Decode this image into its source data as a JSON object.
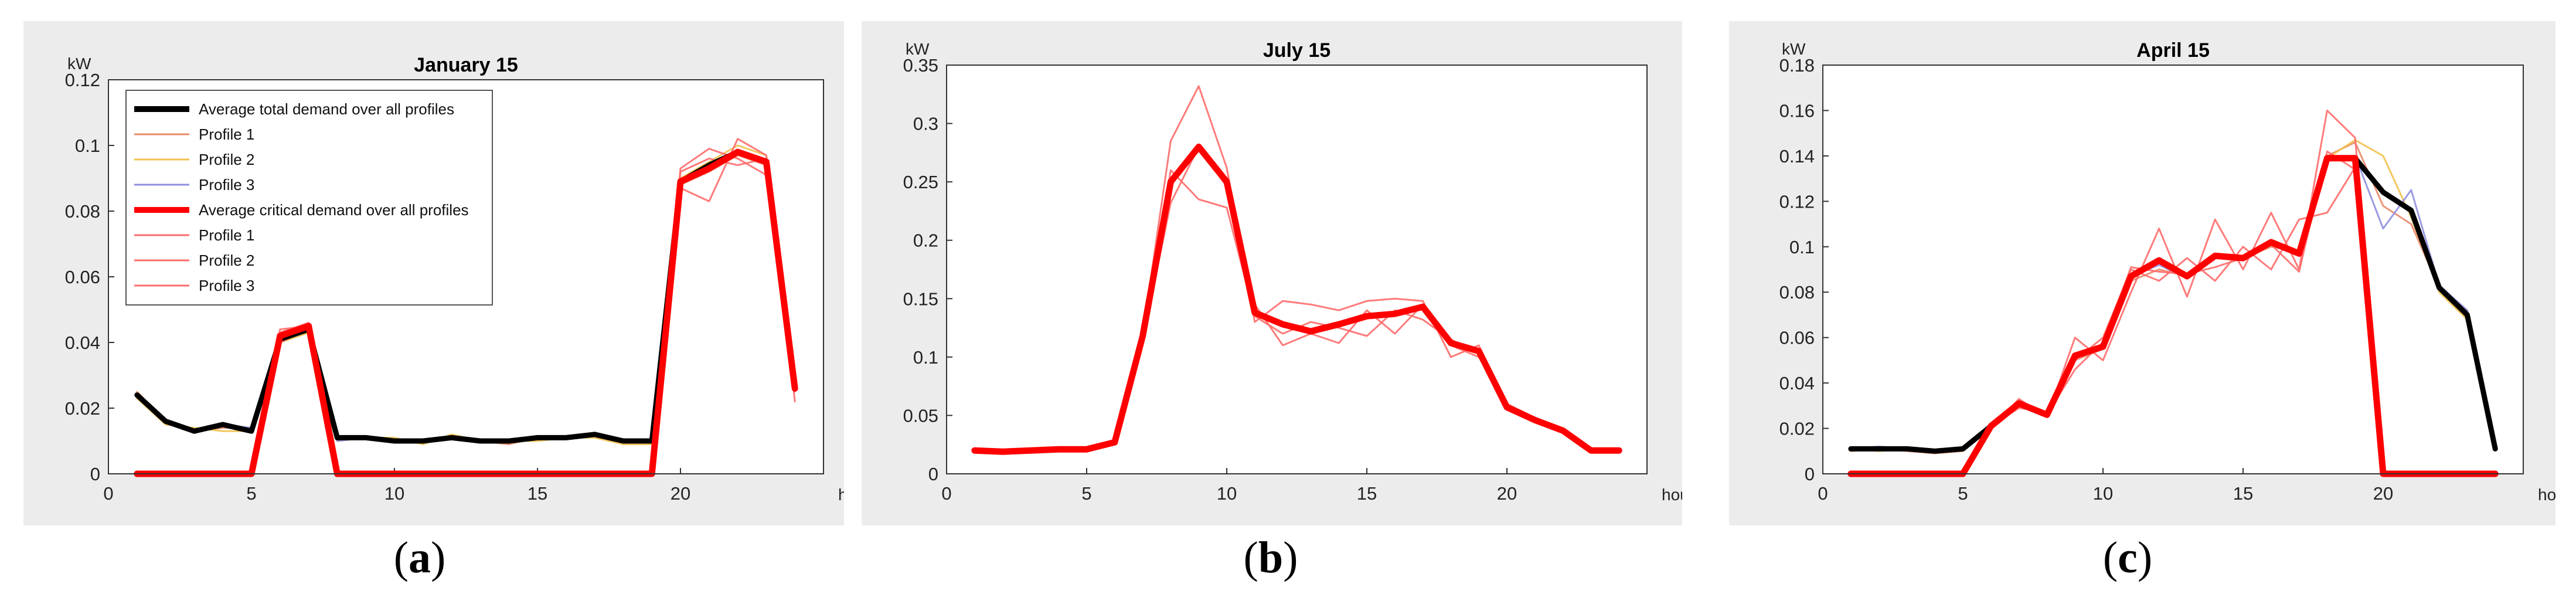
{
  "figure": {
    "sublabels": [
      {
        "open": "(",
        "letter": "a",
        "close": ")"
      },
      {
        "open": "(",
        "letter": "b",
        "close": ")"
      },
      {
        "open": "(",
        "letter": "c",
        "close": ")"
      }
    ]
  },
  "colors": {
    "panel_bg": "#ececec",
    "plot_bg": "#ffffff",
    "avg_total": "#000000",
    "avg_critical": "#ff0000",
    "profile1_total": "#e98a6a",
    "profile2_total": "#f2c14e",
    "profile3_total": "#8f8fe0",
    "profile_critical": "#ff6b6b"
  },
  "chart_data": [
    {
      "type": "line",
      "title": "January 15",
      "xlabel": "hours",
      "ylabel": "kW",
      "xlim": [
        0,
        25
      ],
      "ylim": [
        0,
        0.12
      ],
      "xticks": [
        "0",
        "5",
        "10",
        "15",
        "20"
      ],
      "yticks": [
        "0",
        "0.02",
        "0.04",
        "0.06",
        "0.08",
        "0.1",
        "0.12"
      ],
      "grid": false,
      "legend": {
        "placement": "top-left",
        "entries": [
          {
            "label": "Average total demand over all profiles",
            "color": "#000000",
            "kind": "thick"
          },
          {
            "label": "Profile 1",
            "color": "#e98a6a",
            "kind": "thin"
          },
          {
            "label": "Profile 2",
            "color": "#f2c14e",
            "kind": "thin"
          },
          {
            "label": "Profile 3",
            "color": "#8f8fe0",
            "kind": "thin"
          },
          {
            "label": "Average critical demand over all profiles",
            "color": "#ff0000",
            "kind": "thick"
          },
          {
            "label": "Profile 1",
            "color": "#ff6b6b",
            "kind": "thin"
          },
          {
            "label": "Profile 2",
            "color": "#ff6b6b",
            "kind": "thin"
          },
          {
            "label": "Profile 3",
            "color": "#ff6b6b",
            "kind": "thin"
          }
        ]
      },
      "x": [
        1,
        2,
        3,
        4,
        5,
        6,
        7,
        8,
        9,
        10,
        11,
        12,
        13,
        14,
        15,
        16,
        17,
        18,
        19,
        20,
        21,
        22,
        23,
        24
      ],
      "series": [
        {
          "name": "Profile 1",
          "group": "total",
          "values": [
            0.025,
            0.016,
            0.013,
            0.014,
            0.014,
            0.041,
            0.044,
            0.011,
            0.011,
            0.01,
            0.01,
            0.011,
            0.01,
            0.009,
            0.011,
            0.011,
            0.012,
            0.01,
            0.01,
            0.088,
            0.092,
            0.097,
            0.094,
            0.025
          ]
        },
        {
          "name": "Profile 2",
          "group": "total",
          "values": [
            0.023,
            0.015,
            0.014,
            0.013,
            0.013,
            0.04,
            0.043,
            0.01,
            0.011,
            0.011,
            0.009,
            0.012,
            0.01,
            0.01,
            0.01,
            0.011,
            0.011,
            0.009,
            0.009,
            0.09,
            0.095,
            0.1,
            0.097,
            0.026
          ]
        },
        {
          "name": "Profile 3",
          "group": "total",
          "values": [
            0.024,
            0.016,
            0.013,
            0.015,
            0.014,
            0.042,
            0.045,
            0.01,
            0.011,
            0.01,
            0.01,
            0.011,
            0.01,
            0.01,
            0.011,
            0.011,
            0.012,
            0.01,
            0.01,
            0.089,
            0.093,
            0.098,
            0.095,
            0.026
          ]
        },
        {
          "name": "Average total demand over all profiles",
          "group": "total",
          "values": [
            0.024,
            0.016,
            0.013,
            0.015,
            0.013,
            0.041,
            0.044,
            0.011,
            0.011,
            0.01,
            0.01,
            0.011,
            0.01,
            0.01,
            0.011,
            0.011,
            0.012,
            0.01,
            0.01,
            0.089,
            0.094,
            0.098,
            0.095,
            0.026
          ]
        },
        {
          "name": "Profile 1",
          "group": "critical",
          "values": [
            0,
            0,
            0,
            0,
            0,
            0.043,
            0.046,
            0,
            0,
            0,
            0,
            0,
            0,
            0,
            0,
            0,
            0,
            0,
            0,
            0.092,
            0.096,
            0.094,
            0.096,
            0.025
          ]
        },
        {
          "name": "Profile 2",
          "group": "critical",
          "values": [
            0,
            0,
            0,
            0,
            0,
            0.04,
            0.044,
            0,
            0,
            0,
            0,
            0,
            0,
            0,
            0,
            0,
            0,
            0,
            0,
            0.087,
            0.083,
            0.102,
            0.097,
            0.022
          ]
        },
        {
          "name": "Profile 3",
          "group": "critical",
          "values": [
            0,
            0,
            0,
            0,
            0,
            0.044,
            0.045,
            0,
            0,
            0,
            0,
            0,
            0,
            0,
            0,
            0,
            0,
            0,
            0,
            0.093,
            0.099,
            0.096,
            0.091,
            0.027
          ]
        },
        {
          "name": "Average critical demand over all profiles",
          "group": "critical",
          "values": [
            0,
            0,
            0,
            0,
            0,
            0.042,
            0.045,
            0,
            0,
            0,
            0,
            0,
            0,
            0,
            0,
            0,
            0,
            0,
            0,
            0.089,
            0.093,
            0.098,
            0.095,
            0.026
          ]
        }
      ]
    },
    {
      "type": "line",
      "title": "July 15",
      "xlabel": "hours",
      "ylabel": "kW",
      "xlim": [
        0,
        25
      ],
      "ylim": [
        0,
        0.35
      ],
      "xticks": [
        "0",
        "5",
        "10",
        "15",
        "20"
      ],
      "yticks": [
        "0",
        "0.05",
        "0.1",
        "0.15",
        "0.2",
        "0.25",
        "0.3",
        "0.35"
      ],
      "grid": false,
      "x": [
        1,
        2,
        3,
        4,
        5,
        6,
        7,
        8,
        9,
        10,
        11,
        12,
        13,
        14,
        15,
        16,
        17,
        18,
        19,
        20,
        21,
        22,
        23,
        24
      ],
      "series": [
        {
          "name": "Profile 1",
          "group": "critical",
          "values": [
            0.02,
            0.019,
            0.02,
            0.021,
            0.021,
            0.028,
            0.12,
            0.285,
            0.332,
            0.262,
            0.13,
            0.148,
            0.145,
            0.14,
            0.148,
            0.15,
            0.148,
            0.1,
            0.11,
            0.055,
            0.046,
            0.036,
            0.02,
            0.02
          ]
        },
        {
          "name": "Profile 2",
          "group": "critical",
          "values": [
            0.02,
            0.02,
            0.019,
            0.022,
            0.02,
            0.026,
            0.115,
            0.232,
            0.28,
            0.246,
            0.145,
            0.11,
            0.12,
            0.112,
            0.14,
            0.12,
            0.145,
            0.11,
            0.1,
            0.06,
            0.048,
            0.038,
            0.02,
            0.02
          ]
        },
        {
          "name": "Profile 3",
          "group": "critical",
          "values": [
            0.021,
            0.02,
            0.021,
            0.02,
            0.021,
            0.027,
            0.118,
            0.26,
            0.235,
            0.228,
            0.135,
            0.12,
            0.13,
            0.125,
            0.118,
            0.14,
            0.132,
            0.115,
            0.103,
            0.055,
            0.045,
            0.037,
            0.021,
            0.021
          ]
        },
        {
          "name": "Average critical demand over all profiles",
          "group": "critical",
          "values": [
            0.02,
            0.019,
            0.02,
            0.021,
            0.021,
            0.027,
            0.118,
            0.25,
            0.28,
            0.25,
            0.138,
            0.128,
            0.122,
            0.128,
            0.135,
            0.137,
            0.143,
            0.112,
            0.105,
            0.057,
            0.046,
            0.037,
            0.02,
            0.02
          ]
        }
      ]
    },
    {
      "type": "line",
      "title": "April 15",
      "xlabel": "hours",
      "ylabel": "kW",
      "xlim": [
        0,
        25
      ],
      "ylim": [
        0,
        0.18
      ],
      "xticks": [
        "0",
        "5",
        "10",
        "15",
        "20"
      ],
      "yticks": [
        "0",
        "0.02",
        "0.04",
        "0.06",
        "0.08",
        "0.1",
        "0.12",
        "0.14",
        "0.16",
        "0.18"
      ],
      "grid": false,
      "x": [
        1,
        2,
        3,
        4,
        5,
        6,
        7,
        8,
        9,
        10,
        11,
        12,
        13,
        14,
        15,
        16,
        17,
        18,
        19,
        20,
        21,
        22,
        23,
        24
      ],
      "series": [
        {
          "name": "Profile 1",
          "group": "total",
          "values": [
            0.01,
            0.011,
            0.01,
            0.009,
            0.01,
            0.02,
            0.03,
            0.026,
            0.05,
            0.055,
            0.085,
            0.09,
            0.087,
            0.095,
            0.095,
            0.1,
            0.098,
            0.14,
            0.146,
            0.118,
            0.11,
            0.082,
            0.072,
            0.011
          ]
        },
        {
          "name": "Profile 2",
          "group": "total",
          "values": [
            0.011,
            0.01,
            0.011,
            0.01,
            0.011,
            0.021,
            0.032,
            0.027,
            0.052,
            0.057,
            0.088,
            0.094,
            0.088,
            0.097,
            0.096,
            0.103,
            0.097,
            0.139,
            0.147,
            0.14,
            0.113,
            0.08,
            0.068,
            0.011
          ]
        },
        {
          "name": "Profile 3",
          "group": "total",
          "values": [
            0.011,
            0.012,
            0.011,
            0.01,
            0.011,
            0.022,
            0.031,
            0.025,
            0.053,
            0.056,
            0.087,
            0.092,
            0.086,
            0.096,
            0.094,
            0.102,
            0.096,
            0.138,
            0.14,
            0.108,
            0.125,
            0.083,
            0.072,
            0.012
          ]
        },
        {
          "name": "Average total demand over all profiles",
          "group": "total",
          "values": [
            0.011,
            0.011,
            0.011,
            0.01,
            0.011,
            0.021,
            0.031,
            0.026,
            0.052,
            0.056,
            0.087,
            0.094,
            0.087,
            0.096,
            0.095,
            0.102,
            0.097,
            0.139,
            0.139,
            0.124,
            0.116,
            0.082,
            0.07,
            0.011
          ]
        },
        {
          "name": "Profile 1",
          "group": "critical",
          "values": [
            0,
            0,
            0,
            0,
            0,
            0.02,
            0.033,
            0.025,
            0.06,
            0.05,
            0.08,
            0.108,
            0.078,
            0.112,
            0.09,
            0.115,
            0.09,
            0.16,
            0.148,
            0,
            0,
            0,
            0,
            0
          ]
        },
        {
          "name": "Profile 2",
          "group": "critical",
          "values": [
            0,
            0,
            0,
            0,
            0,
            0.021,
            0.029,
            0.027,
            0.05,
            0.06,
            0.09,
            0.085,
            0.095,
            0.085,
            0.1,
            0.09,
            0.112,
            0.115,
            0.135,
            0,
            0,
            0,
            0,
            0
          ]
        },
        {
          "name": "Profile 3",
          "group": "critical",
          "values": [
            0,
            0,
            0,
            0,
            0,
            0.022,
            0.031,
            0.026,
            0.046,
            0.058,
            0.091,
            0.089,
            0.088,
            0.091,
            0.095,
            0.101,
            0.089,
            0.142,
            0.134,
            0,
            0,
            0,
            0,
            0
          ]
        },
        {
          "name": "Average critical demand over all profiles",
          "group": "critical",
          "values": [
            0,
            0,
            0,
            0,
            0,
            0.021,
            0.031,
            0.026,
            0.052,
            0.056,
            0.087,
            0.094,
            0.087,
            0.096,
            0.095,
            0.102,
            0.097,
            0.139,
            0.139,
            0,
            0,
            0,
            0,
            0
          ]
        }
      ]
    }
  ]
}
